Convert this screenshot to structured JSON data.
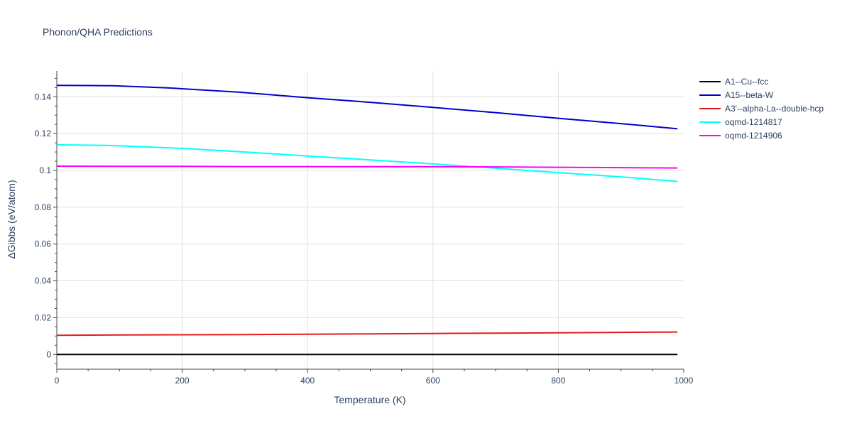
{
  "chart_data": {
    "type": "line",
    "title": "Phonon/QHA Predictions",
    "xlabel": "Temperature (K)",
    "ylabel": "ΔGibbs (eV/atom)",
    "xlim": [
      0,
      1000
    ],
    "ylim": [
      -0.008,
      0.154
    ],
    "x_ticks": [
      0,
      200,
      400,
      600,
      800,
      1000
    ],
    "y_ticks": [
      0,
      0.02,
      0.04,
      0.06,
      0.08,
      0.1,
      0.12,
      0.14
    ],
    "grid": true,
    "legend_position": "top-right",
    "series": [
      {
        "name": "A1--Cu--fcc",
        "color": "#000000",
        "x": [
          0,
          100,
          200,
          300,
          400,
          500,
          600,
          700,
          800,
          900,
          990
        ],
        "y": [
          0,
          0,
          0,
          0,
          0,
          0,
          0,
          0,
          0,
          0,
          0
        ]
      },
      {
        "name": "A15--beta-W",
        "color": "#0000cd",
        "x": [
          0,
          90,
          180,
          290,
          400,
          500,
          600,
          700,
          800,
          900,
          990
        ],
        "y": [
          0.1462,
          0.146,
          0.1448,
          0.1425,
          0.1395,
          0.137,
          0.1342,
          0.1314,
          0.1283,
          0.1254,
          0.1226
        ]
      },
      {
        "name": "A3'--alpha-La--double-hcp",
        "color": "#e41a1c",
        "x": [
          0,
          100,
          200,
          300,
          400,
          500,
          600,
          700,
          800,
          900,
          990
        ],
        "y": [
          0.0104,
          0.0106,
          0.0107,
          0.0108,
          0.011,
          0.0112,
          0.0114,
          0.0116,
          0.0118,
          0.012,
          0.0122
        ]
      },
      {
        "name": "oqmd-1214817",
        "color": "#00ffff",
        "x": [
          0,
          80,
          200,
          300,
          400,
          500,
          600,
          700,
          800,
          900,
          990
        ],
        "y": [
          0.1139,
          0.1136,
          0.112,
          0.11,
          0.1078,
          0.1057,
          0.1035,
          0.1012,
          0.0988,
          0.0965,
          0.094
        ]
      },
      {
        "name": "oqmd-1214906",
        "color": "#ff00ff",
        "x": [
          0,
          100,
          200,
          300,
          400,
          500,
          600,
          700,
          800,
          900,
          990
        ],
        "y": [
          0.1023,
          0.1022,
          0.1022,
          0.1021,
          0.1021,
          0.102,
          0.102,
          0.1019,
          0.1017,
          0.1015,
          0.1013
        ]
      }
    ]
  }
}
